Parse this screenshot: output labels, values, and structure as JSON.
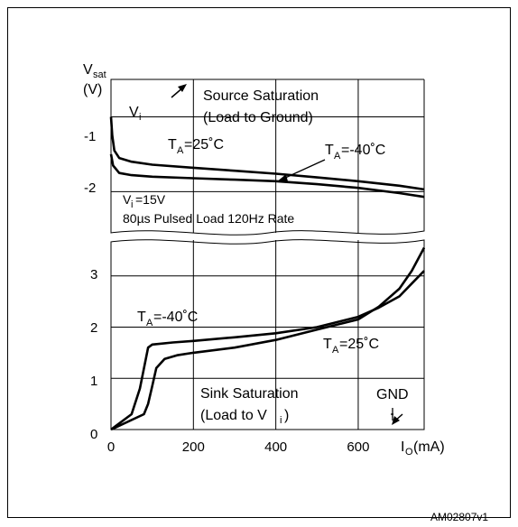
{
  "chart_data": {
    "type": "line",
    "figure_id": "AM02807v1",
    "y_axis": {
      "symbol": "V",
      "subscript": "sat",
      "unit": "(V)"
    },
    "x_axis": {
      "label_prefix": "I",
      "label_subscript": "O",
      "label_suffix": "(mA)",
      "ticks": [
        "0",
        "200",
        "400",
        "600"
      ],
      "range": [
        0,
        760
      ]
    },
    "source_panel": {
      "title_line1": "Source Saturation",
      "title_line2": "(Load to Ground)",
      "input_symbol": "V",
      "input_subscript": "i",
      "y_ticks": [
        "-1",
        "-2"
      ],
      "range": [
        -0.5,
        -2.55
      ],
      "condition_line1_prefix": "V",
      "condition_line1_subscript": "i",
      "condition_line1_suffix": "=15V",
      "condition_line2": "80µs Pulsed Load 120Hz Rate",
      "series": [
        {
          "label_prefix": "T",
          "label_subscript": "A",
          "label_suffix": "=25˚C",
          "points": [
            [
              0,
              -1.0
            ],
            [
              3,
              -1.25
            ],
            [
              8,
              -1.45
            ],
            [
              20,
              -1.55
            ],
            [
              50,
              -1.6
            ],
            [
              100,
              -1.64
            ],
            [
              200,
              -1.68
            ],
            [
              300,
              -1.72
            ],
            [
              400,
              -1.76
            ],
            [
              500,
              -1.81
            ],
            [
              600,
              -1.86
            ],
            [
              700,
              -1.92
            ],
            [
              760,
              -1.97
            ]
          ]
        },
        {
          "label_prefix": "T",
          "label_subscript": "A",
          "label_suffix": "=-40˚C",
          "points": [
            [
              0,
              -1.5
            ],
            [
              5,
              -1.65
            ],
            [
              20,
              -1.75
            ],
            [
              50,
              -1.78
            ],
            [
              100,
              -1.8
            ],
            [
              200,
              -1.82
            ],
            [
              300,
              -1.84
            ],
            [
              400,
              -1.86
            ],
            [
              500,
              -1.9
            ],
            [
              600,
              -1.95
            ],
            [
              700,
              -2.02
            ],
            [
              760,
              -2.07
            ]
          ]
        }
      ]
    },
    "sink_panel": {
      "title_line1": "Sink Saturation",
      "title_line2_prefix": "(Load to V",
      "title_line2_subscript": "i",
      "title_line2_suffix": ")",
      "gnd_label": "GND",
      "y_ticks": [
        "0",
        "1",
        "2",
        "3"
      ],
      "range": [
        0,
        3.7
      ],
      "series": [
        {
          "label_prefix": "T",
          "label_subscript": "A",
          "label_suffix": "=-40˚C",
          "points": [
            [
              0,
              0
            ],
            [
              50,
              0.3
            ],
            [
              70,
              0.8
            ],
            [
              90,
              1.6
            ],
            [
              100,
              1.66
            ],
            [
              150,
              1.7
            ],
            [
              200,
              1.73
            ],
            [
              300,
              1.8
            ],
            [
              400,
              1.88
            ],
            [
              500,
              2.0
            ],
            [
              600,
              2.2
            ],
            [
              650,
              2.38
            ],
            [
              700,
              2.6
            ],
            [
              730,
              2.85
            ],
            [
              760,
              3.1
            ]
          ]
        },
        {
          "label_prefix": "T",
          "label_subscript": "A",
          "label_suffix": "=25˚C",
          "points": [
            [
              0,
              0
            ],
            [
              80,
              0.3
            ],
            [
              90,
              0.5
            ],
            [
              100,
              0.85
            ],
            [
              110,
              1.2
            ],
            [
              130,
              1.38
            ],
            [
              160,
              1.45
            ],
            [
              200,
              1.5
            ],
            [
              300,
              1.6
            ],
            [
              400,
              1.75
            ],
            [
              500,
              1.95
            ],
            [
              600,
              2.15
            ],
            [
              650,
              2.4
            ],
            [
              700,
              2.75
            ],
            [
              730,
              3.1
            ],
            [
              760,
              3.55
            ]
          ]
        }
      ]
    }
  }
}
